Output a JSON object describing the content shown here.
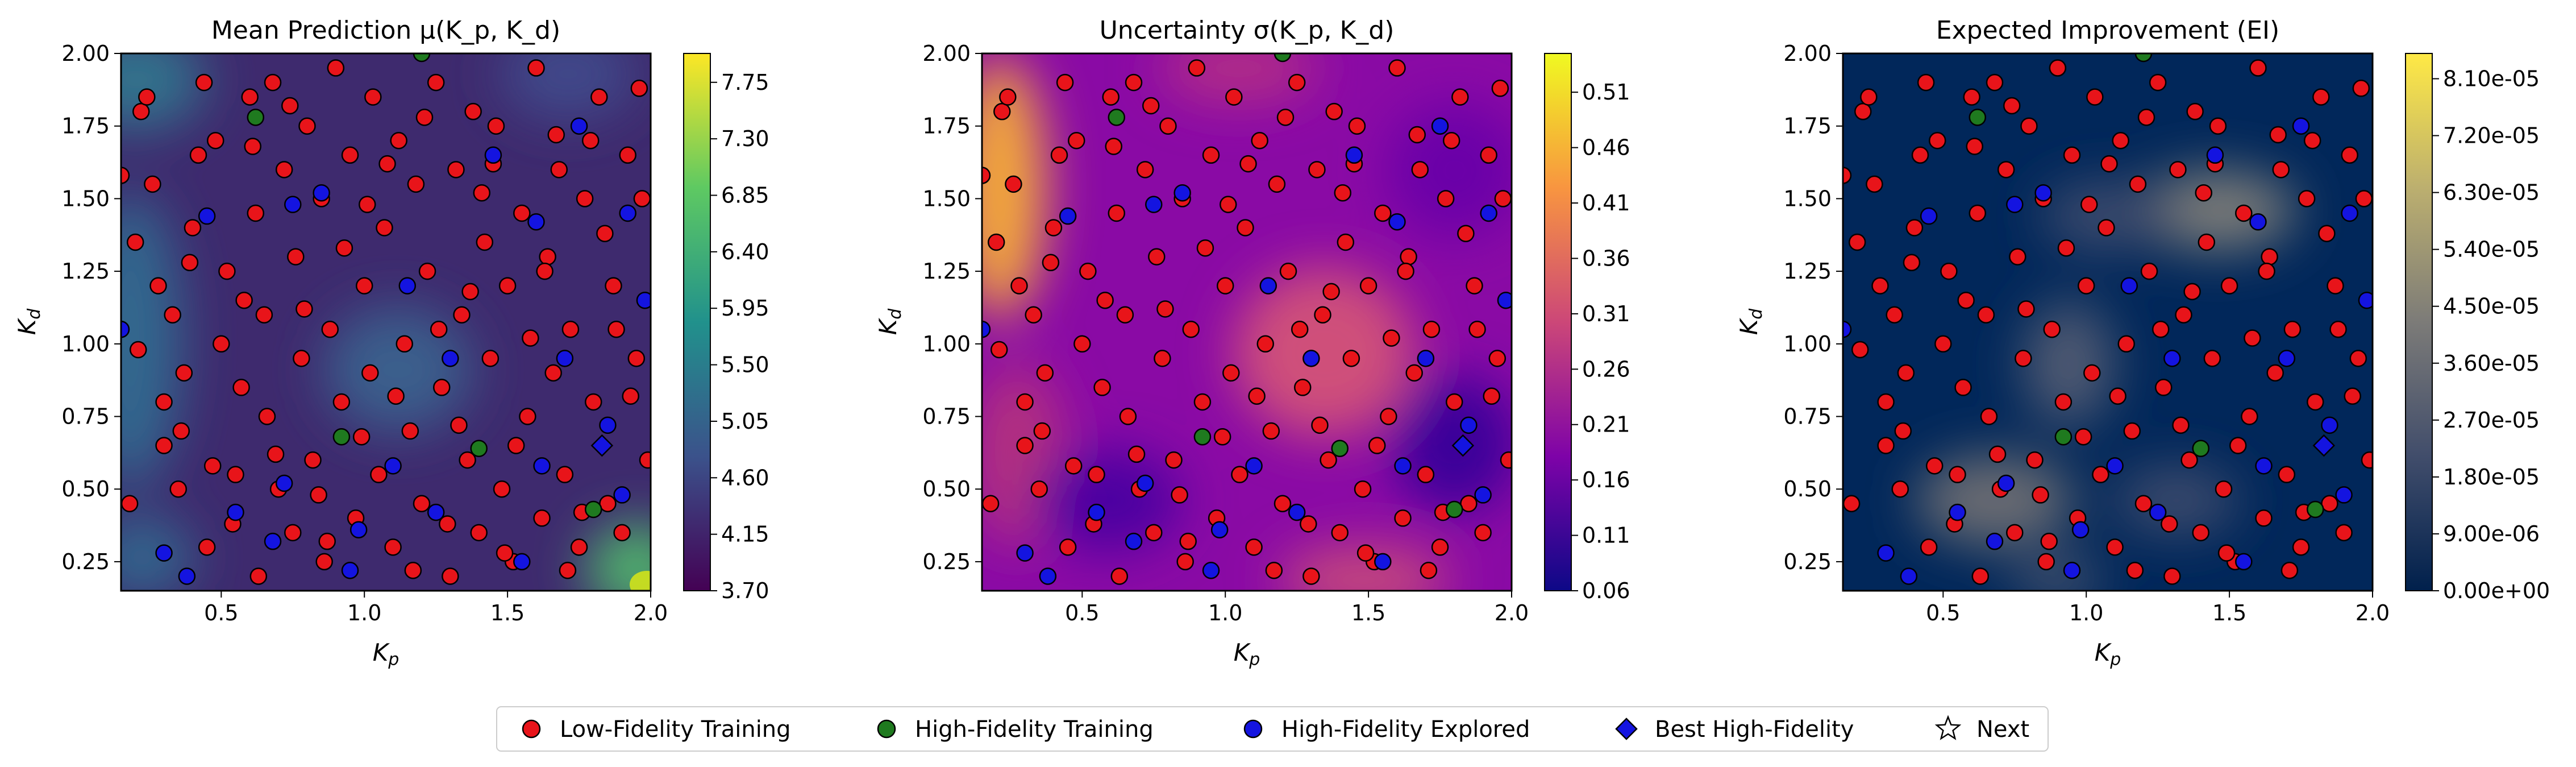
{
  "legend": {
    "placement": "bottom-center",
    "items": [
      {
        "label": "Low-Fidelity Training",
        "marker": "circle",
        "color": "#e8141a"
      },
      {
        "label": "High-Fidelity Training",
        "marker": "circle",
        "color": "#1f7a1f"
      },
      {
        "label": "High-Fidelity Explored",
        "marker": "circle",
        "color": "#1414e0"
      },
      {
        "label": "Best High-Fidelity",
        "marker": "diamond",
        "color": "#1414e0"
      },
      {
        "label": "Next",
        "marker": "star",
        "color": "#ffffff"
      }
    ]
  },
  "chart_data": [
    {
      "type": "heatmap",
      "title": "Mean Prediction μ(K_p, K_d)",
      "xlabel": "K_p",
      "ylabel": "K_d",
      "xlim": [
        0.15,
        2.0
      ],
      "ylim": [
        0.15,
        2.0
      ],
      "xticks": [
        "0.5",
        "1.0",
        "1.5",
        "2.0"
      ],
      "yticks": [
        "0.25",
        "0.50",
        "0.75",
        "1.00",
        "1.25",
        "1.50",
        "1.75",
        "2.00"
      ],
      "colormap": "viridis",
      "colorbar": {
        "range": [
          3.7,
          7.98
        ],
        "ticks": [
          "3.70",
          "4.15",
          "4.60",
          "5.05",
          "5.50",
          "5.95",
          "6.40",
          "6.85",
          "7.30",
          "7.75"
        ]
      }
    },
    {
      "type": "heatmap",
      "title": "Uncertainty σ(K_p, K_d)",
      "xlabel": "K_p",
      "ylabel": "K_d",
      "xlim": [
        0.15,
        2.0
      ],
      "ylim": [
        0.15,
        2.0
      ],
      "xticks": [
        "0.5",
        "1.0",
        "1.5",
        "2.0"
      ],
      "yticks": [
        "0.25",
        "0.50",
        "0.75",
        "1.00",
        "1.25",
        "1.50",
        "1.75",
        "2.00"
      ],
      "colormap": "plasma",
      "colorbar": {
        "range": [
          0.06,
          0.545
        ],
        "ticks": [
          "0.06",
          "0.11",
          "0.16",
          "0.21",
          "0.26",
          "0.31",
          "0.36",
          "0.41",
          "0.46",
          "0.51"
        ]
      }
    },
    {
      "type": "heatmap",
      "title": "Expected Improvement (EI)",
      "xlabel": "K_p",
      "ylabel": "K_d",
      "xlim": [
        0.15,
        2.0
      ],
      "ylim": [
        0.15,
        2.0
      ],
      "xticks": [
        "0.5",
        "1.0",
        "1.5",
        "2.0"
      ],
      "yticks": [
        "0.25",
        "0.50",
        "0.75",
        "1.00",
        "1.25",
        "1.50",
        "1.75",
        "2.00"
      ],
      "colormap": "cividis",
      "colorbar": {
        "range": [
          0.0,
          8.5e-05
        ],
        "ticks": [
          "0.00e+00",
          "9.00e-06",
          "1.80e-05",
          "2.70e-05",
          "3.60e-05",
          "4.50e-05",
          "5.40e-05",
          "6.30e-05",
          "7.20e-05",
          "8.10e-05"
        ]
      }
    }
  ],
  "points": {
    "low_fidelity_training": [
      [
        0.15,
        1.58
      ],
      [
        0.2,
        1.35
      ],
      [
        0.22,
        1.8
      ],
      [
        0.24,
        1.85
      ],
      [
        0.28,
        1.2
      ],
      [
        0.3,
        0.8
      ],
      [
        0.3,
        0.65
      ],
      [
        0.33,
        1.1
      ],
      [
        0.35,
        0.5
      ],
      [
        0.37,
        0.9
      ],
      [
        0.4,
        1.4
      ],
      [
        0.42,
        1.65
      ],
      [
        0.45,
        0.3
      ],
      [
        0.48,
        1.7
      ],
      [
        0.5,
        1.0
      ],
      [
        0.52,
        1.25
      ],
      [
        0.55,
        0.55
      ],
      [
        0.57,
        0.85
      ],
      [
        0.6,
        1.85
      ],
      [
        0.62,
        1.45
      ],
      [
        0.63,
        0.2
      ],
      [
        0.65,
        1.1
      ],
      [
        0.66,
        0.75
      ],
      [
        0.68,
        1.9
      ],
      [
        0.7,
        0.5
      ],
      [
        0.72,
        1.6
      ],
      [
        0.75,
        0.35
      ],
      [
        0.76,
        1.3
      ],
      [
        0.78,
        0.95
      ],
      [
        0.8,
        1.75
      ],
      [
        0.82,
        0.6
      ],
      [
        0.85,
        1.5
      ],
      [
        0.86,
        0.25
      ],
      [
        0.88,
        1.05
      ],
      [
        0.9,
        1.95
      ],
      [
        0.92,
        0.8
      ],
      [
        0.95,
        1.65
      ],
      [
        0.97,
        0.4
      ],
      [
        1.0,
        1.2
      ],
      [
        1.02,
        0.9
      ],
      [
        1.03,
        1.85
      ],
      [
        1.05,
        0.55
      ],
      [
        1.07,
        1.4
      ],
      [
        1.1,
        0.3
      ],
      [
        1.12,
        1.7
      ],
      [
        1.14,
        1.0
      ],
      [
        1.16,
        0.7
      ],
      [
        1.18,
        1.55
      ],
      [
        1.2,
        0.45
      ],
      [
        1.22,
        1.25
      ],
      [
        1.25,
        1.9
      ],
      [
        1.27,
        0.85
      ],
      [
        1.3,
        0.2
      ],
      [
        1.32,
        1.6
      ],
      [
        1.34,
        1.1
      ],
      [
        1.36,
        0.6
      ],
      [
        1.38,
        1.8
      ],
      [
        1.4,
        0.35
      ],
      [
        1.42,
        1.35
      ],
      [
        1.44,
        0.95
      ],
      [
        1.46,
        1.75
      ],
      [
        1.48,
        0.5
      ],
      [
        1.5,
        1.2
      ],
      [
        1.52,
        0.25
      ],
      [
        1.55,
        1.45
      ],
      [
        1.57,
        0.75
      ],
      [
        1.6,
        1.95
      ],
      [
        1.62,
        0.4
      ],
      [
        1.64,
        1.3
      ],
      [
        1.66,
        0.9
      ],
      [
        1.68,
        1.6
      ],
      [
        1.7,
        0.55
      ],
      [
        1.72,
        1.05
      ],
      [
        1.75,
        0.3
      ],
      [
        1.77,
        1.5
      ],
      [
        1.8,
        0.8
      ],
      [
        1.82,
        1.85
      ],
      [
        1.85,
        0.45
      ],
      [
        1.87,
        1.2
      ],
      [
        1.9,
        0.35
      ],
      [
        1.92,
        1.65
      ],
      [
        1.95,
        0.95
      ],
      [
        1.97,
        1.5
      ],
      [
        1.99,
        0.6
      ],
      [
        0.18,
        0.45
      ],
      [
        0.26,
        1.55
      ],
      [
        0.36,
        0.7
      ],
      [
        0.44,
        1.9
      ],
      [
        0.54,
        0.38
      ],
      [
        0.58,
        1.15
      ],
      [
        0.69,
        0.62
      ],
      [
        0.74,
        1.82
      ],
      [
        0.84,
        0.48
      ],
      [
        0.93,
        1.33
      ],
      [
        0.99,
        0.68
      ],
      [
        1.08,
        1.62
      ],
      [
        1.17,
        0.22
      ],
      [
        1.26,
        1.05
      ],
      [
        1.33,
        0.72
      ],
      [
        1.41,
        1.52
      ],
      [
        1.49,
        0.28
      ],
      [
        1.58,
        1.02
      ],
      [
        1.67,
        1.72
      ],
      [
        1.76,
        0.42
      ],
      [
        1.84,
        1.38
      ],
      [
        1.93,
        0.82
      ],
      [
        0.21,
        0.98
      ],
      [
        0.39,
        1.28
      ],
      [
        0.47,
        0.58
      ],
      [
        0.61,
        1.68
      ],
      [
        0.79,
        1.12
      ],
      [
        0.87,
        0.32
      ],
      [
        1.01,
        1.48
      ],
      [
        1.11,
        0.82
      ],
      [
        1.21,
        1.78
      ],
      [
        1.29,
        0.38
      ],
      [
        1.37,
        1.18
      ],
      [
        1.45,
        1.62
      ],
      [
        1.53,
        0.65
      ],
      [
        1.63,
        1.25
      ],
      [
        1.71,
        0.22
      ],
      [
        1.79,
        1.7
      ],
      [
        1.88,
        1.05
      ],
      [
        1.96,
        1.88
      ]
    ],
    "high_fidelity_training": [
      [
        0.62,
        1.78
      ],
      [
        0.92,
        0.68
      ],
      [
        1.2,
        2.0
      ],
      [
        1.4,
        0.64
      ],
      [
        1.8,
        0.43
      ]
    ],
    "high_fidelity_explored": [
      [
        0.15,
        1.05
      ],
      [
        0.3,
        0.28
      ],
      [
        0.45,
        1.44
      ],
      [
        0.55,
        0.42
      ],
      [
        0.68,
        0.32
      ],
      [
        0.75,
        1.48
      ],
      [
        0.85,
        1.52
      ],
      [
        0.98,
        0.36
      ],
      [
        1.1,
        0.58
      ],
      [
        1.15,
        1.2
      ],
      [
        1.3,
        0.95
      ],
      [
        1.45,
        1.65
      ],
      [
        1.55,
        0.25
      ],
      [
        1.6,
        1.42
      ],
      [
        1.7,
        0.95
      ],
      [
        1.75,
        1.75
      ],
      [
        1.85,
        0.72
      ],
      [
        1.9,
        0.48
      ],
      [
        1.98,
        1.15
      ],
      [
        0.72,
        0.52
      ],
      [
        1.25,
        0.42
      ],
      [
        1.62,
        0.58
      ],
      [
        1.92,
        1.45
      ],
      [
        0.38,
        0.2
      ],
      [
        0.95,
        0.22
      ]
    ],
    "best_high_fidelity": [
      [
        1.83,
        0.65
      ]
    ]
  }
}
